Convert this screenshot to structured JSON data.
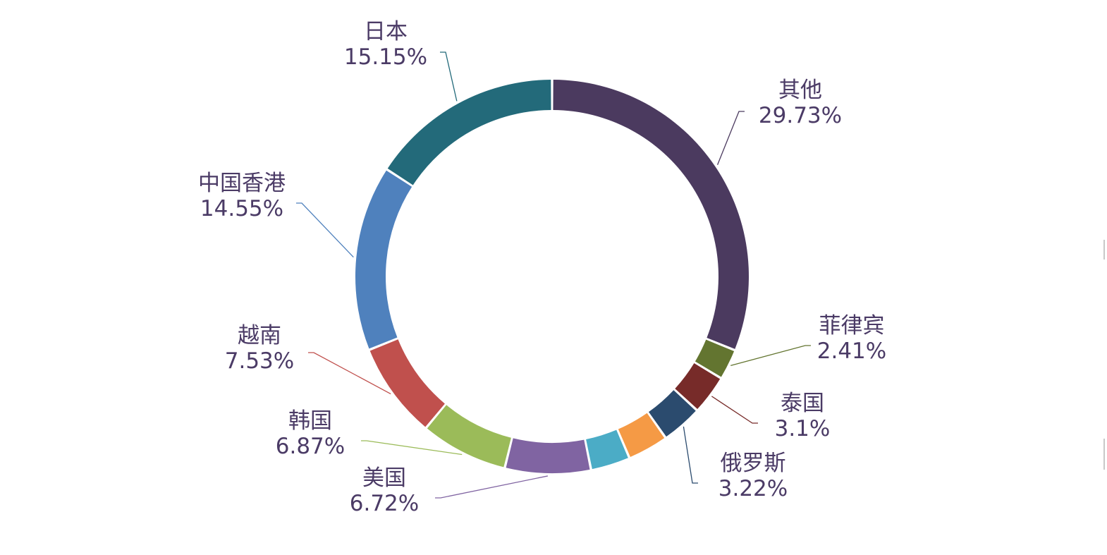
{
  "chart_data": {
    "type": "pie",
    "variant": "donut",
    "legend": "none",
    "slices": [
      {
        "label": "其他",
        "value": 29.73,
        "value_text": "29.73%",
        "color": "#4b3a5f"
      },
      {
        "label": "菲律宾",
        "value": 2.41,
        "value_text": "2.41%",
        "color": "#637530"
      },
      {
        "label": "泰国",
        "value": 3.1,
        "value_text": "3.1%",
        "color": "#772b29"
      },
      {
        "label": "俄罗斯",
        "value": 3.22,
        "value_text": "3.22%",
        "color": "#2b4b6e"
      },
      {
        "label": "",
        "value": 3.2,
        "value_text": "",
        "color": "#f59a45"
      },
      {
        "label": "",
        "value": 3.1,
        "value_text": "",
        "color": "#4bacc6"
      },
      {
        "label": "美国",
        "value": 6.72,
        "value_text": "6.72%",
        "color": "#8064a2"
      },
      {
        "label": "韩国",
        "value": 6.87,
        "value_text": "6.87%",
        "color": "#9bbb59"
      },
      {
        "label": "越南",
        "value": 7.53,
        "value_text": "7.53%",
        "color": "#c0504d"
      },
      {
        "label": "中国香港",
        "value": 14.55,
        "value_text": "14.55%",
        "color": "#4f81bd"
      },
      {
        "label": "日本",
        "value": 15.15,
        "value_text": "15.15%",
        "color": "#236a7a"
      }
    ]
  }
}
